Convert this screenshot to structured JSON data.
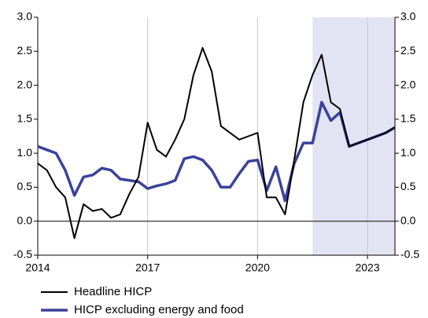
{
  "chart_data": {
    "type": "line",
    "x": [
      2014,
      2014.25,
      2014.5,
      2014.75,
      2015,
      2015.25,
      2015.5,
      2015.75,
      2016,
      2016.25,
      2016.5,
      2016.75,
      2017,
      2017.25,
      2017.5,
      2017.75,
      2018,
      2018.25,
      2018.5,
      2018.75,
      2019,
      2019.25,
      2019.5,
      2019.75,
      2020,
      2020.25,
      2020.5,
      2020.75,
      2021,
      2021.25,
      2021.5,
      2021.75,
      2022,
      2022.25,
      2022.5,
      2022.75,
      2023,
      2023.25,
      2023.5,
      2023.75
    ],
    "series": [
      {
        "name": "Headline HICP",
        "color": "#000000",
        "values": [
          0.85,
          0.75,
          0.5,
          0.35,
          -0.25,
          0.25,
          0.15,
          0.18,
          0.05,
          0.1,
          0.4,
          0.65,
          1.45,
          1.05,
          0.95,
          1.2,
          1.5,
          2.15,
          2.55,
          2.2,
          1.4,
          1.3,
          1.2,
          1.25,
          1.3,
          0.35,
          0.35,
          0.1,
          0.9,
          1.75,
          2.15,
          2.45,
          1.75,
          1.65,
          1.1,
          1.15,
          1.2,
          1.25,
          1.3,
          1.38
        ]
      },
      {
        "name": "HICP excluding energy and food",
        "color": "#3a429a",
        "values": [
          1.1,
          1.05,
          1.0,
          0.75,
          0.38,
          0.65,
          0.68,
          0.78,
          0.75,
          0.62,
          0.6,
          0.58,
          0.48,
          0.52,
          0.55,
          0.6,
          0.92,
          0.95,
          0.9,
          0.75,
          0.5,
          0.5,
          0.7,
          0.88,
          0.9,
          0.45,
          0.8,
          0.3,
          0.85,
          1.15,
          1.15,
          1.75,
          1.48,
          1.6,
          1.1,
          1.15,
          1.2,
          1.25,
          1.3,
          1.38
        ]
      }
    ],
    "shaded_xrange": [
      2021.5,
      2023.75
    ],
    "shade_color": "#e3e4f3",
    "xlim": [
      2014,
      2023.75
    ],
    "xticks": [
      2014,
      2017,
      2020,
      2023
    ],
    "ylim": [
      -0.5,
      3.0
    ],
    "yticks": [
      {
        "value": -0.5,
        "label": "-0.5"
      },
      {
        "value": 0,
        "label": "0.0"
      },
      {
        "value": 0.5,
        "label": "0.5"
      },
      {
        "value": 1.0,
        "label": "1.0"
      },
      {
        "value": 1.5,
        "label": "1.5"
      },
      {
        "value": 2.0,
        "label": "2.0"
      },
      {
        "value": 2.5,
        "label": "2.5"
      },
      {
        "value": 3.0,
        "label": "3.0"
      }
    ],
    "y2lim": [
      -0.5,
      3.0
    ],
    "y2ticks": [
      {
        "value": -0.5,
        "label": "-0.5"
      },
      {
        "value": 0,
        "label": "0.0"
      },
      {
        "value": 0.5,
        "label": "0.5"
      },
      {
        "value": 1.0,
        "label": "1.0"
      },
      {
        "value": 1.5,
        "label": "1.5"
      },
      {
        "value": 2.0,
        "label": "2.0"
      },
      {
        "value": 2.5,
        "label": "2.5"
      },
      {
        "value": 3.0,
        "label": "3.0"
      }
    ],
    "grid": true,
    "legend": "bottom-left"
  }
}
